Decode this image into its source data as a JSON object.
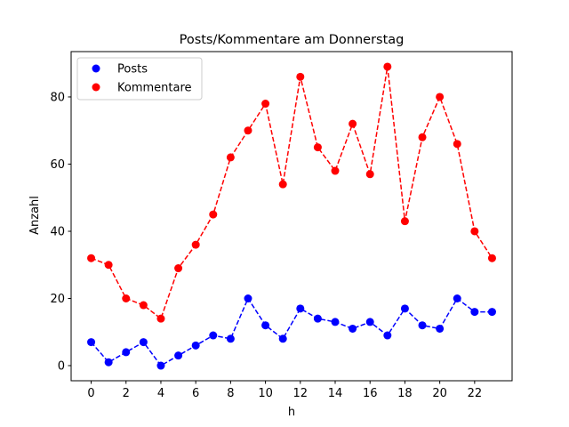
{
  "chart_data": {
    "type": "line",
    "title": "Posts/Kommentare am Donnerstag",
    "xlabel": "h",
    "ylabel": "Anzahl",
    "x": [
      0,
      1,
      2,
      3,
      4,
      5,
      6,
      7,
      8,
      9,
      10,
      11,
      12,
      13,
      14,
      15,
      16,
      17,
      18,
      19,
      20,
      21,
      22,
      23
    ],
    "xlim": [
      -1.15,
      24.15
    ],
    "ylim": [
      -4.5,
      93.5
    ],
    "xticks": [
      0,
      2,
      4,
      6,
      8,
      10,
      12,
      14,
      16,
      18,
      20,
      22
    ],
    "yticks": [
      0,
      20,
      40,
      60,
      80
    ],
    "grid": false,
    "legend_position": "upper-left",
    "series": [
      {
        "name": "Posts",
        "color": "#0000ff",
        "marker": "circle",
        "linestyle": "dashed",
        "values": [
          7,
          1,
          4,
          7,
          0,
          3,
          6,
          9,
          8,
          20,
          12,
          8,
          17,
          14,
          13,
          11,
          13,
          9,
          17,
          12,
          11,
          20,
          16,
          16
        ]
      },
      {
        "name": "Kommentare",
        "color": "#ff0000",
        "marker": "circle",
        "linestyle": "dashed",
        "values": [
          32,
          30,
          20,
          18,
          14,
          29,
          36,
          45,
          62,
          70,
          78,
          54,
          86,
          65,
          58,
          72,
          57,
          89,
          43,
          68,
          80,
          66,
          40,
          32
        ]
      }
    ]
  }
}
